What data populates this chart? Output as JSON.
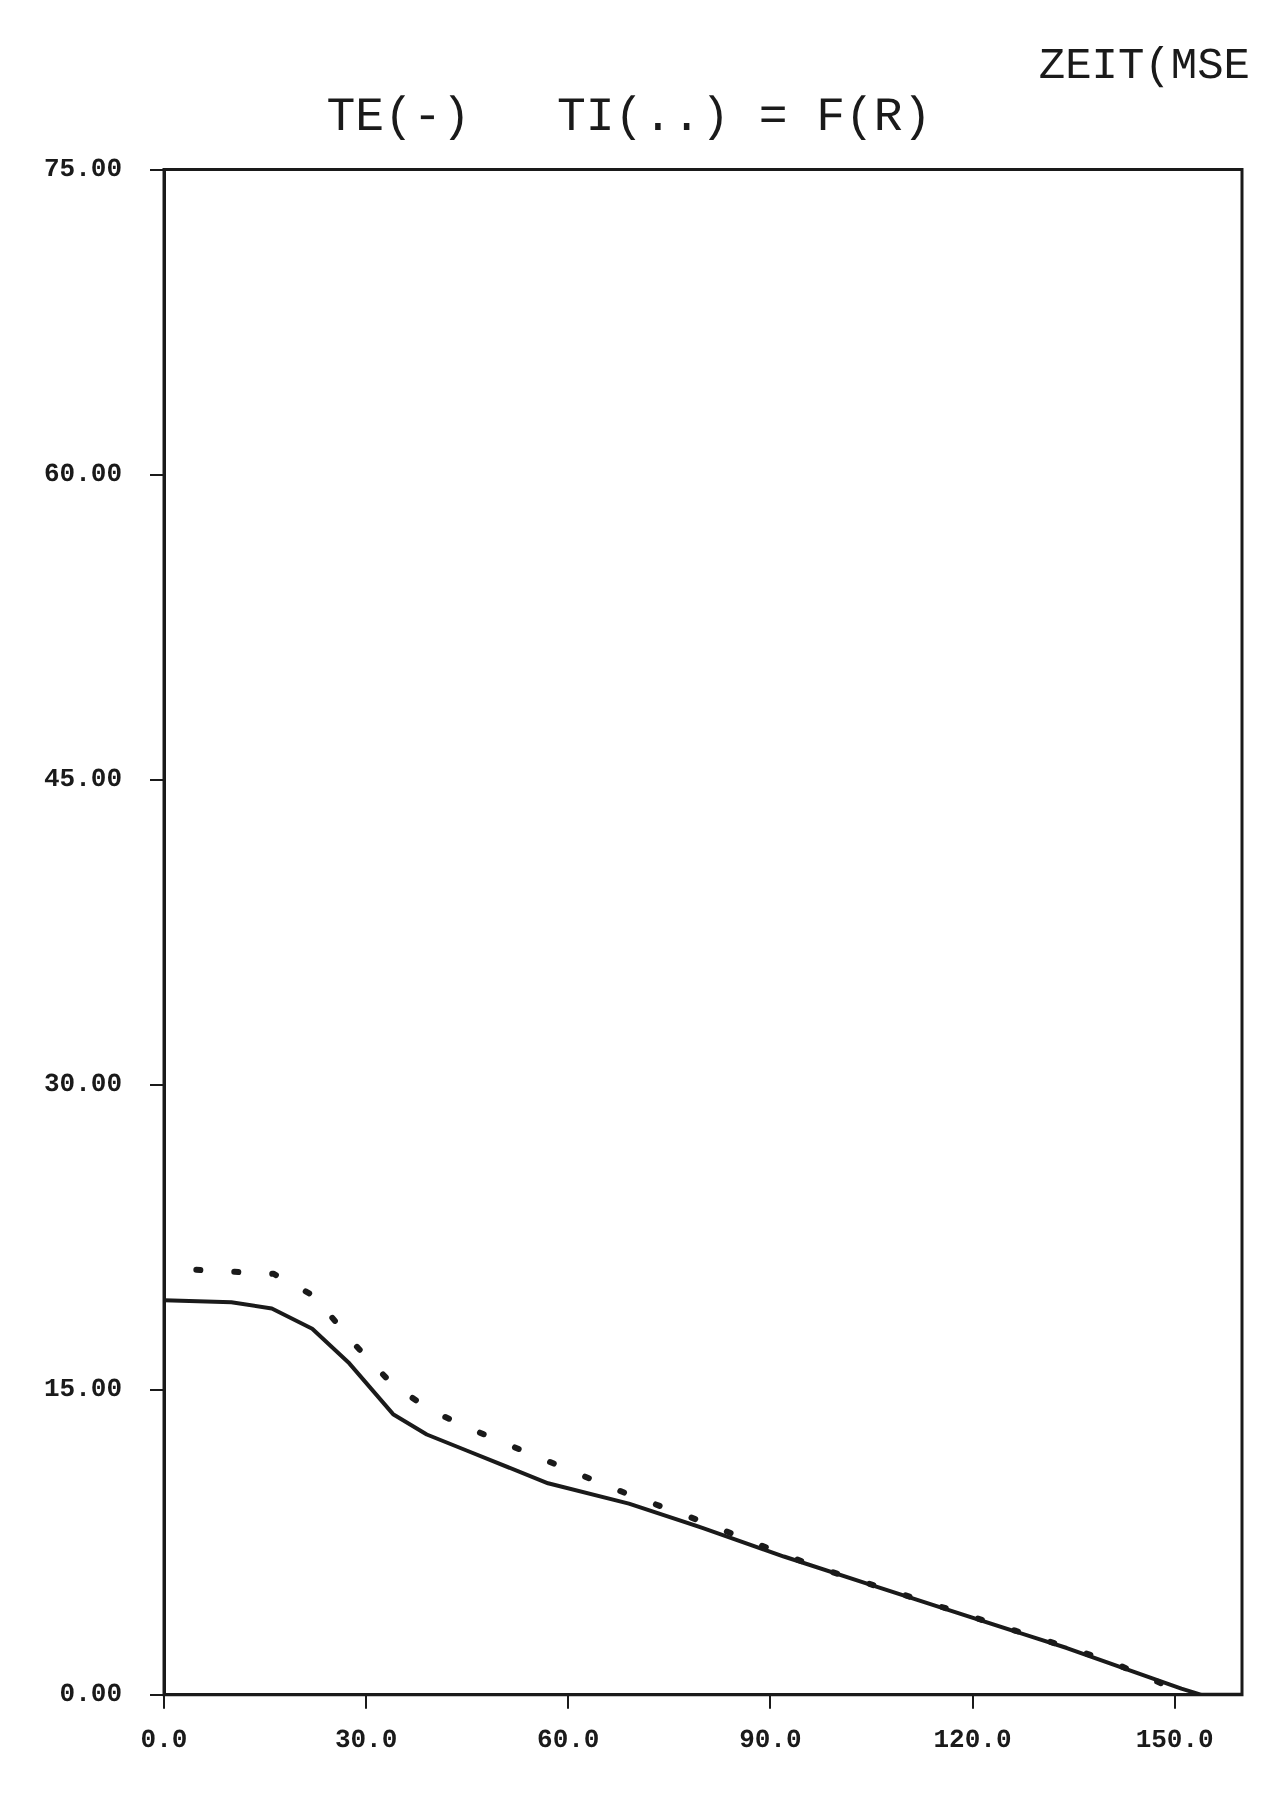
{
  "chart_data": {
    "type": "line",
    "title": "TE(-)   TI(..) = F(R)",
    "annotations": [
      "ZEIT(MSE"
    ],
    "xlim": [
      0,
      160
    ],
    "xticks": [
      {
        "value": 0,
        "label": "0.0"
      },
      {
        "value": 30,
        "label": "30.0"
      },
      {
        "value": 60,
        "label": "60.0"
      },
      {
        "value": 90,
        "label": "90.0"
      },
      {
        "value": 120,
        "label": "120.0"
      },
      {
        "value": 150,
        "label": "150.0"
      }
    ],
    "ylim": [
      0,
      75
    ],
    "yticks": [
      {
        "value": 0,
        "label": "0.00"
      },
      {
        "value": 15,
        "label": "15.00"
      },
      {
        "value": 30,
        "label": "30.00"
      },
      {
        "value": 45,
        "label": "45.00"
      },
      {
        "value": 60,
        "label": "60.00"
      },
      {
        "value": 75,
        "label": "75.00"
      }
    ],
    "grid": false,
    "legend": false,
    "marker": "none",
    "series": [
      {
        "color": "#1a1a1a",
        "line_style": "solid",
        "x": [
          0,
          10,
          16,
          22,
          27.5,
          34,
          39,
          45,
          57,
          69,
          80,
          92,
          104,
          118,
          134,
          151,
          154,
          160
        ],
        "values": [
          19.4,
          19.3,
          19.0,
          18.0,
          16.3,
          13.8,
          12.8,
          12.0,
          10.4,
          9.4,
          8.2,
          6.8,
          5.5,
          4.0,
          2.3,
          0.3,
          0,
          0
        ]
      },
      {
        "color": "#1a1a1a",
        "line_style": "dotted",
        "x": [
          4.8,
          10.5,
          16.3,
          22.3,
          28.1,
          33.8,
          39.5,
          45.4,
          51.1,
          56.9,
          62.7,
          68.6,
          74.3,
          80,
          86,
          92,
          97.6,
          110,
          125,
          140,
          152
        ],
        "values": [
          20.9,
          20.8,
          20.7,
          19.6,
          17.3,
          15.3,
          14.0,
          13.1,
          12.3,
          11.5,
          10.7,
          9.9,
          9.2,
          8.5,
          7.7,
          6.9,
          6.2,
          4.9,
          3.3,
          1.7,
          0
        ]
      }
    ]
  }
}
